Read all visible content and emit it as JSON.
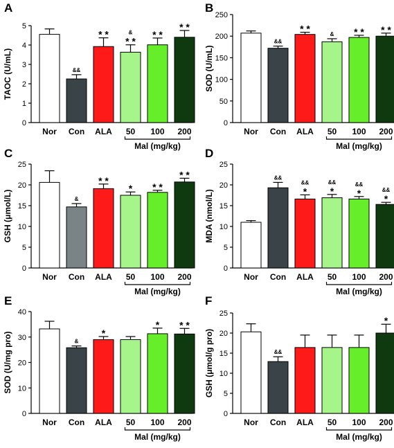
{
  "categories": [
    "Nor",
    "Con",
    "ALA",
    "50",
    "100",
    "200"
  ],
  "group_label": "Mal (mg/kg)",
  "bar_colors": [
    "#ffffff",
    "#3a4348",
    "#ff1a1a",
    "#a6f58a",
    "#66ee2b",
    "#0f3a0f"
  ],
  "chart_data": [
    {
      "panel": "A",
      "type": "bar",
      "ylabel": "TAOC (U/mL)",
      "ylim": [
        0,
        5
      ],
      "yticks": [
        0,
        1,
        2,
        3,
        4,
        5
      ],
      "categories": [
        "Nor",
        "Con",
        "ALA",
        "50",
        "100",
        "200"
      ],
      "values": [
        4.55,
        2.25,
        3.92,
        3.63,
        4.01,
        4.4
      ],
      "errors": [
        0.28,
        0.22,
        0.45,
        0.38,
        0.35,
        0.35
      ],
      "marks": [
        {
          "stars": "",
          "amp": ""
        },
        {
          "stars": "",
          "amp": "&&"
        },
        {
          "stars": "* *",
          "amp": ""
        },
        {
          "stars": "* *",
          "amp": "&"
        },
        {
          "stars": "* *",
          "amp": ""
        },
        {
          "stars": "* *",
          "amp": ""
        }
      ]
    },
    {
      "panel": "B",
      "type": "bar",
      "ylabel": "SOD (U/mL)",
      "ylim": [
        0,
        250
      ],
      "yticks": [
        0,
        50,
        100,
        150,
        200,
        250
      ],
      "categories": [
        "Nor",
        "Con",
        "ALA",
        "50",
        "100",
        "200"
      ],
      "values": [
        207,
        172,
        204,
        187,
        197,
        200
      ],
      "errors": [
        5,
        5,
        5,
        7,
        5,
        7
      ],
      "marks": [
        {
          "stars": "",
          "amp": ""
        },
        {
          "stars": "",
          "amp": "&&"
        },
        {
          "stars": "* *",
          "amp": ""
        },
        {
          "stars": "",
          "amp": "&"
        },
        {
          "stars": "* *",
          "amp": ""
        },
        {
          "stars": "* *",
          "amp": ""
        }
      ]
    },
    {
      "panel": "C",
      "type": "bar",
      "ylabel": "GSH (μmol/L)",
      "ylim": [
        0,
        25
      ],
      "yticks": [
        0,
        5,
        10,
        15,
        20,
        25
      ],
      "categories": [
        "Nor",
        "Con",
        "ALA",
        "50",
        "100",
        "200"
      ],
      "values": [
        20.6,
        14.7,
        19.1,
        17.5,
        18.2,
        20.7
      ],
      "errors": [
        2.8,
        0.8,
        1.1,
        0.8,
        0.5,
        0.9
      ],
      "marks": [
        {
          "stars": "",
          "amp": ""
        },
        {
          "stars": "",
          "amp": "&"
        },
        {
          "stars": "* *",
          "amp": ""
        },
        {
          "stars": "*",
          "amp": ""
        },
        {
          "stars": "* *",
          "amp": ""
        },
        {
          "stars": "* *",
          "amp": ""
        }
      ]
    },
    {
      "panel": "D",
      "type": "bar",
      "ylabel": "MDA (nmol/L)",
      "ylim": [
        0,
        25
      ],
      "yticks": [
        0,
        5,
        10,
        15,
        20,
        25
      ],
      "categories": [
        "Nor",
        "Con",
        "ALA",
        "50",
        "100",
        "200"
      ],
      "values": [
        11.0,
        19.3,
        16.6,
        16.9,
        16.6,
        15.3
      ],
      "errors": [
        0.4,
        1.3,
        1.0,
        0.8,
        0.6,
        0.5
      ],
      "marks": [
        {
          "stars": "",
          "amp": ""
        },
        {
          "stars": "",
          "amp": "&&"
        },
        {
          "stars": "*",
          "amp": "&&"
        },
        {
          "stars": "*",
          "amp": "&&"
        },
        {
          "stars": "*",
          "amp": "&&"
        },
        {
          "stars": "*",
          "amp": "&&"
        }
      ]
    },
    {
      "panel": "E",
      "type": "bar",
      "ylabel": "SOD (U/mg pro)",
      "ylim": [
        0,
        40
      ],
      "yticks": [
        0,
        10,
        20,
        30,
        40
      ],
      "categories": [
        "Nor",
        "Con",
        "ALA",
        "50",
        "100",
        "200"
      ],
      "values": [
        33.2,
        25.8,
        29.0,
        29.0,
        31.3,
        31.2
      ],
      "errors": [
        3.0,
        0.7,
        1.2,
        1.2,
        2.2,
        2.2
      ],
      "marks": [
        {
          "stars": "",
          "amp": ""
        },
        {
          "stars": "",
          "amp": "&"
        },
        {
          "stars": "*",
          "amp": ""
        },
        {
          "stars": "",
          "amp": ""
        },
        {
          "stars": "*",
          "amp": ""
        },
        {
          "stars": "* *",
          "amp": ""
        }
      ]
    },
    {
      "panel": "F",
      "type": "bar",
      "ylabel": "GSH (μmol/g pro)",
      "ylim": [
        0,
        25
      ],
      "yticks": [
        0,
        5,
        10,
        15,
        20,
        25
      ],
      "categories": [
        "Nor",
        "Con",
        "ALA",
        "50",
        "100",
        "200"
      ],
      "values": [
        20.3,
        12.9,
        16.4,
        16.4,
        16.4,
        20.0
      ],
      "errors": [
        2.0,
        1.2,
        3.1,
        3.1,
        3.1,
        2.2
      ],
      "marks": [
        {
          "stars": "",
          "amp": ""
        },
        {
          "stars": "",
          "amp": "&&"
        },
        {
          "stars": "",
          "amp": ""
        },
        {
          "stars": "",
          "amp": ""
        },
        {
          "stars": "",
          "amp": ""
        },
        {
          "stars": "*",
          "amp": ""
        }
      ]
    }
  ]
}
